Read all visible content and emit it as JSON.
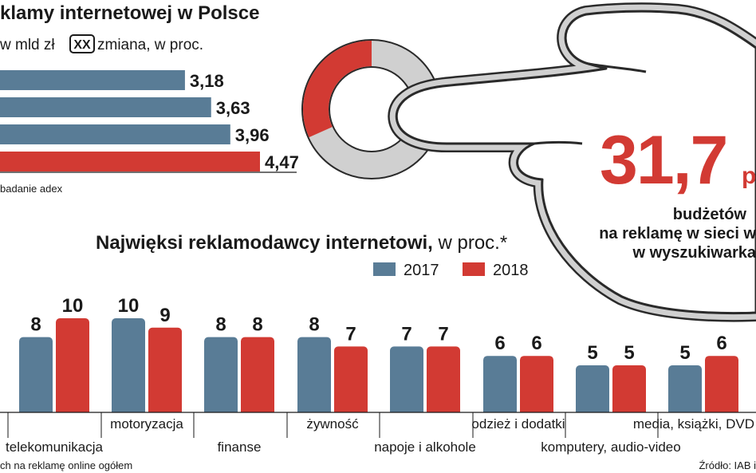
{
  "chart_data": [
    {
      "type": "bar",
      "orientation": "horizontal",
      "title": "klamy internetowej w Polsce",
      "unit_label": "w mld zł",
      "legend_box_label": "XX",
      "legend_box_text": "zmiana, w proc.",
      "values": [
        3.18,
        3.63,
        3.96,
        4.47
      ],
      "value_labels": [
        "3,18",
        "3,63",
        "3,96",
        "4,47"
      ],
      "bar_colors": [
        "#597C96",
        "#597C96",
        "#597C96",
        "#D23A33"
      ],
      "source_note": "badanie adex"
    },
    {
      "type": "bar",
      "title": "Najwięksi reklamodawcy internetowi,",
      "title_suffix": " w proc.*",
      "series": [
        {
          "name": "2017",
          "color": "#597C96",
          "values": [
            8,
            10,
            8,
            8,
            7,
            6,
            5,
            5
          ]
        },
        {
          "name": "2018",
          "color": "#D23A33",
          "values": [
            10,
            9,
            8,
            7,
            7,
            6,
            5,
            6
          ]
        }
      ],
      "categories": [
        "telekomunikacja",
        "motoryzacja",
        "finanse",
        "żywność",
        "napoje i alkohole",
        "odzież i dodatki",
        "komputery, audio-video",
        "media, książki, DVD"
      ],
      "footnote": "ch na reklamę online ogółem",
      "source": "Źródło: IAB i"
    }
  ],
  "highlight": {
    "value": "31,7",
    "unit_partial": "p",
    "lines": [
      "budżetów",
      "na reklamę w sieci w",
      "w wyszukiwarka"
    ],
    "donut_share": 0.317,
    "accent_color": "#D23A33",
    "ring_color": "#D0D0D0"
  }
}
